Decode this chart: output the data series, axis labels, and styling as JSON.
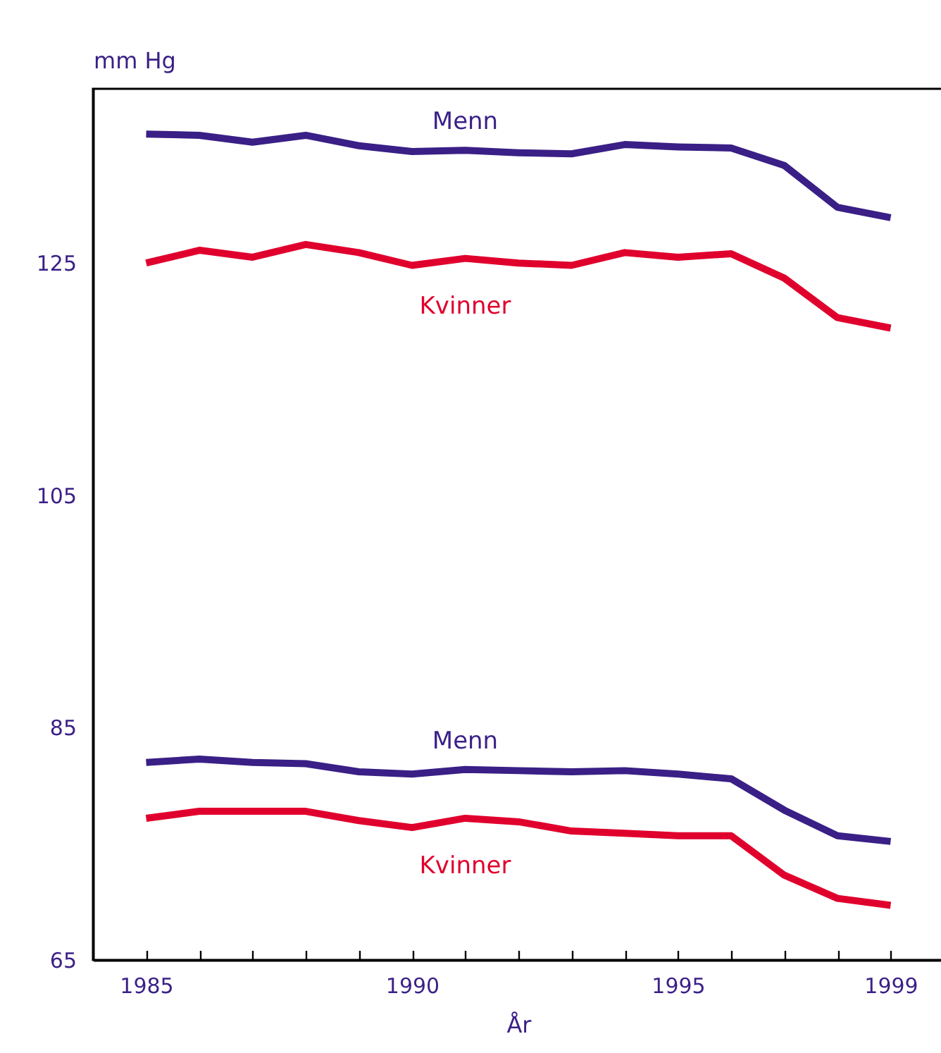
{
  "chart_data": {
    "type": "line",
    "ylabel": "mm Hg",
    "xlabel": "År",
    "x": [
      1985,
      1986,
      1987,
      1988,
      1989,
      1990,
      1991,
      1992,
      1993,
      1994,
      1995,
      1996,
      1997,
      1998,
      1999
    ],
    "series": [
      {
        "name": "Menn",
        "color": "#3a1f86",
        "values": [
          136.1,
          136.0,
          135.4,
          136.0,
          135.1,
          134.6,
          134.7,
          134.5,
          134.4,
          135.2,
          135.0,
          134.9,
          133.4,
          129.8,
          128.9
        ]
      },
      {
        "name": "Kvinner",
        "color": "#e0002d",
        "values": [
          125.0,
          126.1,
          125.5,
          126.6,
          125.9,
          124.8,
          125.4,
          125.0,
          124.8,
          125.9,
          125.5,
          125.8,
          123.7,
          120.3,
          119.4
        ]
      },
      {
        "name": "Menn",
        "color": "#3a1f86",
        "values": [
          82.0,
          82.3,
          82.0,
          81.9,
          81.2,
          81.0,
          81.4,
          81.3,
          81.2,
          81.3,
          81.0,
          80.6,
          77.9,
          75.7,
          75.2
        ]
      },
      {
        "name": "Kvinner",
        "color": "#e0002d",
        "values": [
          77.2,
          77.8,
          77.8,
          77.8,
          77.0,
          76.4,
          77.2,
          76.9,
          76.1,
          75.9,
          75.7,
          75.7,
          72.3,
          70.3,
          69.7
        ]
      }
    ],
    "xlim": [
      1984,
      2000
    ],
    "xticks": [
      1985,
      {
        "value": 1986,
        "label": null
      },
      {
        "value": 1987,
        "label": null
      },
      {
        "value": 1988,
        "label": null
      },
      {
        "value": 1989,
        "label": null
      },
      1990,
      {
        "value": 1991,
        "label": null
      },
      {
        "value": 1992,
        "label": null
      },
      {
        "value": 1993,
        "label": null
      },
      {
        "value": 1994,
        "label": null
      },
      1995,
      {
        "value": 1996,
        "label": null
      },
      {
        "value": 1997,
        "label": null
      },
      {
        "value": 1998,
        "label": null
      },
      1999
    ],
    "ylim": [
      65,
      140
    ],
    "yticks": [
      65,
      85,
      105,
      125
    ],
    "grid": false,
    "marker": "none",
    "line_style": "solid",
    "legend": false
  }
}
